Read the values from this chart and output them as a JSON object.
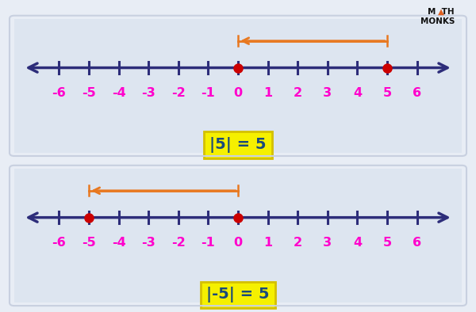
{
  "bg_color": "#e8edf5",
  "panel_color": "#dde5f0",
  "line_color": "#2d2d7a",
  "label_color": "#ff00cc",
  "dot_color": "#cc0000",
  "arrow_color": "#e87820",
  "box_fill": "#f5f000",
  "box_edge": "#d4c000",
  "box_text_color": "#1a4a7a",
  "logo_color": "#111111",
  "logo_tri_color": "#e06020",
  "num_min": -6,
  "num_max": 6,
  "panel1": {
    "dot1": 0,
    "dot2": 5,
    "arrow_from": 5,
    "arrow_to": 0,
    "label": "|5| = 5"
  },
  "panel2": {
    "dot1": -5,
    "dot2": 0,
    "arrow_from": 0,
    "arrow_to": -5,
    "label": "|-5| = 5"
  }
}
